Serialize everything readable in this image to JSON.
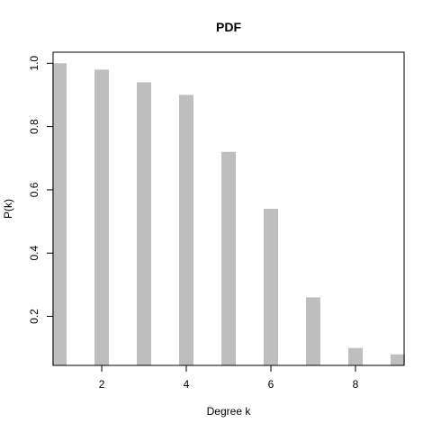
{
  "chart_data": {
    "type": "bar",
    "title": "PDF",
    "xlabel": "Degree k",
    "ylabel": "P(k)",
    "x": [
      1,
      2,
      3,
      4,
      5,
      6,
      7,
      8,
      9
    ],
    "values": [
      1.0,
      0.98,
      0.94,
      0.9,
      0.72,
      0.54,
      0.26,
      0.1,
      0.08
    ],
    "xlim": [
      0.85,
      9.15
    ],
    "ylim": [
      0.045,
      1.035
    ],
    "xticks": [
      "2",
      "4",
      "6",
      "8"
    ],
    "xtick_values": [
      2,
      4,
      6,
      8
    ],
    "yticks": [
      "0.2",
      "0.4",
      "0.6",
      "0.8",
      "1.0"
    ],
    "ytick_values": [
      0.2,
      0.4,
      0.6,
      0.8,
      1.0
    ],
    "bar_color": "#bebebe",
    "grid": false,
    "legend": "none"
  }
}
